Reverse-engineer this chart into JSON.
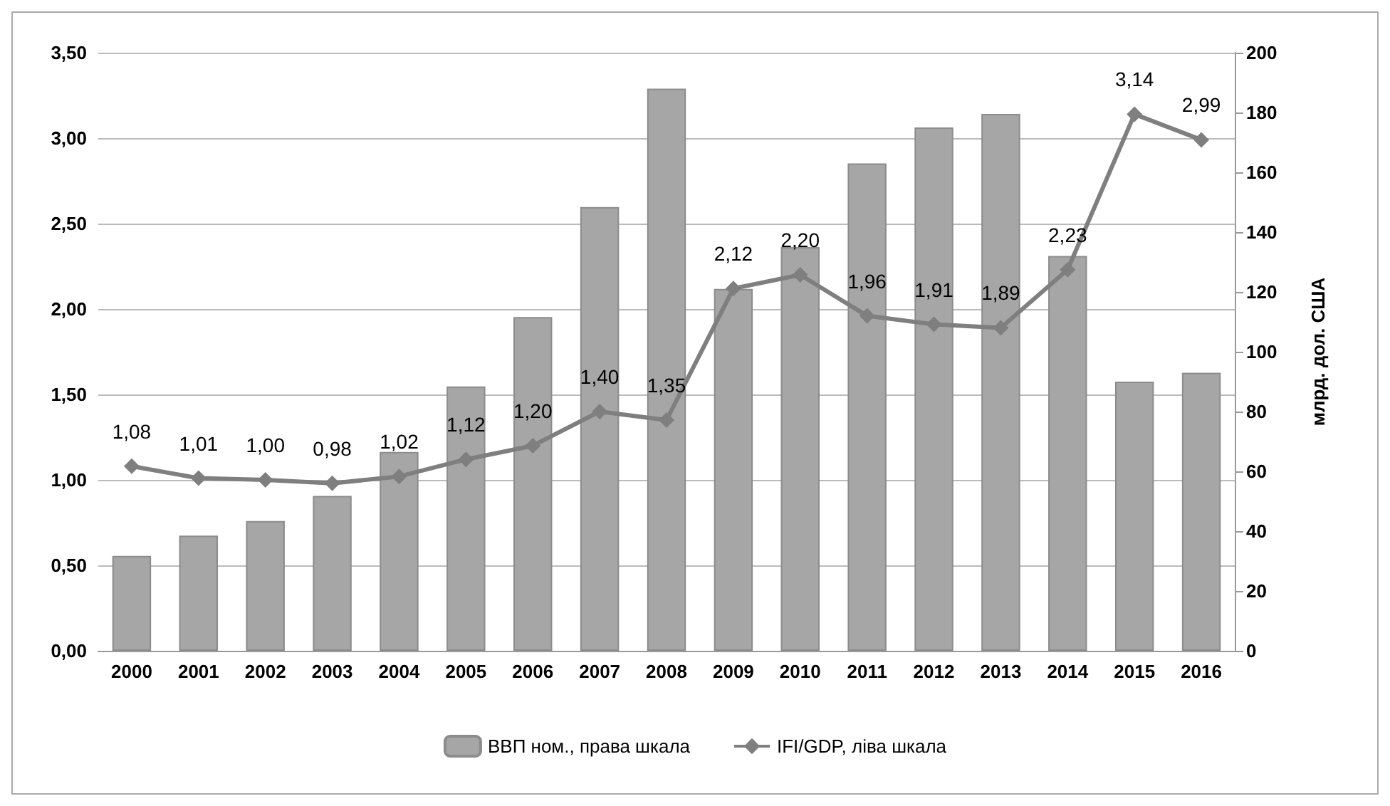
{
  "chart_data": {
    "type": "bar",
    "categories": [
      "2000",
      "2001",
      "2002",
      "2003",
      "2004",
      "2005",
      "2006",
      "2007",
      "2008",
      "2009",
      "2010",
      "2011",
      "2012",
      "2013",
      "2014",
      "2015",
      "2016"
    ],
    "series": [
      {
        "name": "ВВП ном., права шкала",
        "axis": "y2",
        "color": "#a6a6a6",
        "values": [
          31.7,
          38.5,
          43.4,
          51.8,
          66.5,
          88.4,
          111.6,
          148.4,
          188,
          121,
          135,
          163,
          175,
          179.5,
          132,
          90,
          93
        ]
      },
      {
        "name": "IFI/GDP, ліва шкала",
        "type": "line",
        "axis": "y",
        "color": "#7f7f7f",
        "marker": "diamond",
        "values": [
          1.08,
          1.01,
          1.0,
          0.98,
          1.02,
          1.12,
          1.2,
          1.4,
          1.35,
          2.12,
          2.2,
          1.96,
          1.91,
          1.89,
          2.23,
          3.14,
          2.99
        ],
        "value_labels": [
          "1,08",
          "1,01",
          "1,00",
          "0,98",
          "1,02",
          "1,12",
          "1,20",
          "1,40",
          "1,35",
          "2,12",
          "2,20",
          "1,96",
          "1,91",
          "1,89",
          "2,23",
          "3,14",
          "2,99"
        ]
      }
    ],
    "ylim": [
      0,
      3.5
    ],
    "yticks": [
      {
        "value": 0,
        "label": "0,00"
      },
      {
        "value": 0.5,
        "label": "0,50"
      },
      {
        "value": 1,
        "label": "1,00"
      },
      {
        "value": 1.5,
        "label": "1,50"
      },
      {
        "value": 2,
        "label": "2,00"
      },
      {
        "value": 2.5,
        "label": "2,50"
      },
      {
        "value": 3,
        "label": "3,00"
      },
      {
        "value": 3.5,
        "label": "3,50"
      }
    ],
    "y2lim": [
      0,
      200
    ],
    "y2ticks": [
      0,
      20,
      40,
      60,
      80,
      100,
      120,
      140,
      160,
      180,
      200
    ],
    "y2label": "млрд. дол. США",
    "grid": "y",
    "legend": "bottom"
  }
}
